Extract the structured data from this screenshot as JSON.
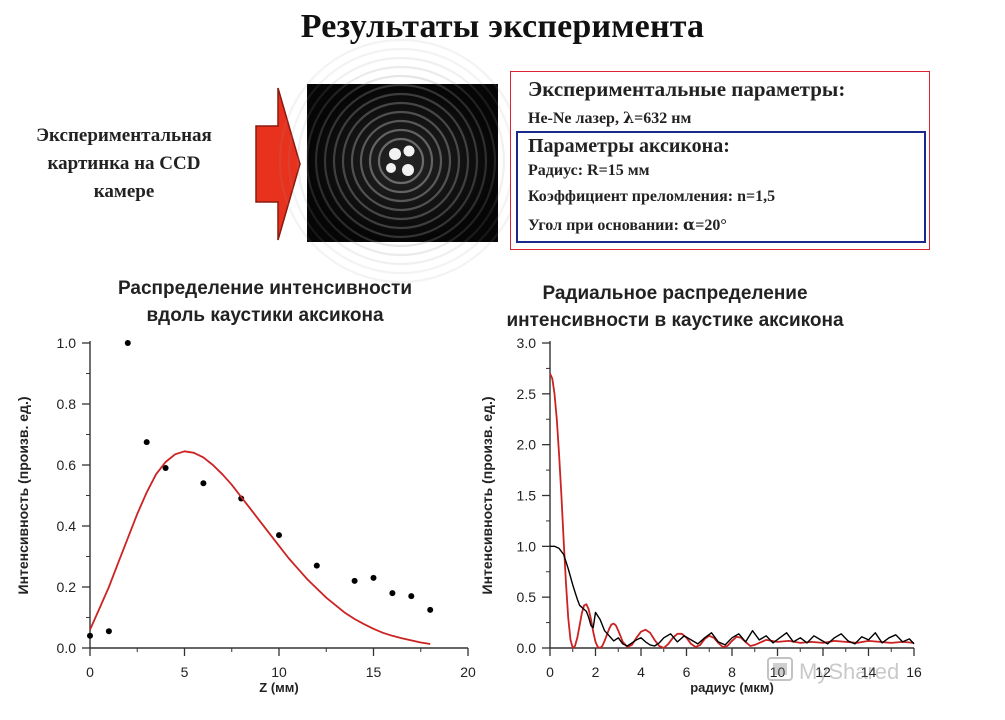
{
  "title": "Результаты эксперимента",
  "ccd_label": [
    "Экспериментальная",
    "картинка на CCD",
    "камере"
  ],
  "parameters": {
    "experimental_heading": "Экспериментальные параметры:",
    "laser_prefix": "He-Ne лазер, ",
    "laser_symbol": "λ",
    "laser_value": "=632 нм",
    "axicon_heading": "Параметры аксикона:",
    "radius": "Радиус: R=15 мм",
    "refraction": "Коэффициент преломления: n=1,5",
    "angle_prefix": "Угол при основании: ",
    "angle_symbol": "α",
    "angle_value": "=20°"
  },
  "colors": {
    "arrow": "#e8321e",
    "frame_red": "#d22233",
    "frame_blue": "#1a2a8a",
    "fit_line": "#cc2222",
    "data": "#000000"
  },
  "watermark": "MyShared",
  "chart_data": [
    {
      "type": "scatter",
      "title": "Распределение интенсивности вдоль каустики аксикона",
      "title_lines": [
        "Распределение интенсивности",
        "вдоль каустики аксикона"
      ],
      "xlabel": "Z (мм)",
      "ylabel": "Интенсивность (произв. ед.)",
      "xlim": [
        0,
        20
      ],
      "ylim": [
        0,
        1.0
      ],
      "xticks": [
        "0",
        "5",
        "10",
        "15",
        "20"
      ],
      "yticks": [
        "0.0",
        "0.2",
        "0.4",
        "0.6",
        "0.8",
        "1.0"
      ],
      "series": [
        {
          "kind": "points",
          "x": [
            0,
            1,
            2,
            3,
            4,
            6,
            8,
            10,
            12,
            14,
            15,
            16,
            17,
            18
          ],
          "y": [
            0.04,
            0.055,
            1.0,
            0.675,
            0.59,
            0.54,
            0.49,
            0.37,
            0.27,
            0.22,
            0.23,
            0.18,
            0.17,
            0.125
          ]
        },
        {
          "kind": "line",
          "x": [
            0,
            0.5,
            1,
            1.5,
            2,
            2.5,
            3,
            3.5,
            4,
            4.5,
            5,
            5.5,
            6,
            6.5,
            7,
            7.5,
            8,
            8.5,
            9,
            9.5,
            10,
            10.5,
            11,
            11.5,
            12,
            12.5,
            13,
            13.5,
            14,
            14.5,
            15,
            15.5,
            16,
            16.5,
            17,
            17.5,
            18
          ],
          "y": [
            0.06,
            0.13,
            0.2,
            0.28,
            0.36,
            0.44,
            0.51,
            0.57,
            0.61,
            0.635,
            0.645,
            0.64,
            0.625,
            0.6,
            0.57,
            0.535,
            0.495,
            0.455,
            0.415,
            0.375,
            0.335,
            0.295,
            0.26,
            0.225,
            0.195,
            0.165,
            0.14,
            0.115,
            0.095,
            0.078,
            0.063,
            0.05,
            0.04,
            0.032,
            0.025,
            0.018,
            0.013
          ]
        }
      ]
    },
    {
      "type": "line",
      "title": "Радиальное распределение интенсивности в каустике аксикона",
      "title_lines": [
        "Радиальное распределение",
        "интенсивности в каустике аксикона"
      ],
      "xlabel": "радиус (мкм)",
      "ylabel": "Интенсивность (произв. ед.)",
      "xlim": [
        0,
        16
      ],
      "ylim": [
        0,
        3.0
      ],
      "xticks": [
        "0",
        "2",
        "4",
        "6",
        "8",
        "10",
        "12",
        "14",
        "16"
      ],
      "yticks": [
        "0.0",
        "0.5",
        "1.0",
        "1.5",
        "2.0",
        "2.5",
        "3.0"
      ],
      "series": [
        {
          "kind": "line",
          "color": "red",
          "x": [
            0,
            0.1,
            0.2,
            0.3,
            0.4,
            0.5,
            0.6,
            0.7,
            0.8,
            0.9,
            1.0,
            1.1,
            1.2,
            1.3,
            1.4,
            1.5,
            1.6,
            1.7,
            1.8,
            1.9,
            2.0,
            2.1,
            2.2,
            2.3,
            2.4,
            2.5,
            2.6,
            2.7,
            2.8,
            2.9,
            3.0,
            3.2,
            3.4,
            3.6,
            3.8,
            4.0,
            4.2,
            4.4,
            4.6,
            4.8,
            5.0,
            5.2,
            5.4,
            5.6,
            5.8,
            6.0,
            6.2,
            6.4,
            6.6,
            6.8,
            7.0,
            7.2,
            7.4,
            7.6,
            7.8,
            8.0,
            8.2,
            8.4,
            8.6,
            8.8,
            9.0,
            9.5,
            10.0,
            10.5,
            11.0,
            11.5,
            12.0,
            12.5,
            13.0,
            13.5,
            14.0,
            14.5,
            15.0,
            15.5,
            16.0
          ],
          "y": [
            2.7,
            2.65,
            2.5,
            2.25,
            1.9,
            1.5,
            1.05,
            0.65,
            0.3,
            0.08,
            0.0,
            0.02,
            0.1,
            0.22,
            0.34,
            0.42,
            0.43,
            0.38,
            0.28,
            0.16,
            0.06,
            0.01,
            0.0,
            0.02,
            0.07,
            0.13,
            0.19,
            0.23,
            0.24,
            0.22,
            0.17,
            0.06,
            0.01,
            0.03,
            0.1,
            0.16,
            0.18,
            0.15,
            0.08,
            0.02,
            0.0,
            0.04,
            0.1,
            0.14,
            0.14,
            0.1,
            0.04,
            0.01,
            0.03,
            0.09,
            0.12,
            0.1,
            0.05,
            0.01,
            0.02,
            0.07,
            0.11,
            0.1,
            0.06,
            0.02,
            0.03,
            0.08,
            0.06,
            0.07,
            0.05,
            0.06,
            0.05,
            0.07,
            0.06,
            0.05,
            0.07,
            0.06,
            0.05,
            0.06,
            0.05
          ]
        },
        {
          "kind": "line",
          "color": "black",
          "x": [
            0,
            0.2,
            0.4,
            0.6,
            0.8,
            1.0,
            1.1,
            1.2,
            1.3,
            1.4,
            1.5,
            1.6,
            1.7,
            1.8,
            1.9,
            2.0,
            2.2,
            2.4,
            2.6,
            2.8,
            3.0,
            3.2,
            3.4,
            3.6,
            3.8,
            4.0,
            4.2,
            4.4,
            4.6,
            4.8,
            5.0,
            5.3,
            5.6,
            5.9,
            6.2,
            6.5,
            6.8,
            7.1,
            7.4,
            7.7,
            8.0,
            8.3,
            8.6,
            8.9,
            9.2,
            9.5,
            9.8,
            10.1,
            10.4,
            10.7,
            11.0,
            11.3,
            11.6,
            11.9,
            12.2,
            12.5,
            12.8,
            13.1,
            13.4,
            13.7,
            14.0,
            14.3,
            14.6,
            14.9,
            15.2,
            15.5,
            15.8,
            16.0
          ],
          "y": [
            1.0,
            1.0,
            0.98,
            0.92,
            0.78,
            0.62,
            0.55,
            0.48,
            0.42,
            0.4,
            0.38,
            0.36,
            0.3,
            0.22,
            0.2,
            0.35,
            0.28,
            0.17,
            0.12,
            0.07,
            0.1,
            0.04,
            0.02,
            0.05,
            0.08,
            0.1,
            0.06,
            0.03,
            0.02,
            0.05,
            0.1,
            0.14,
            0.06,
            0.12,
            0.08,
            0.04,
            0.1,
            0.15,
            0.06,
            0.03,
            0.1,
            0.14,
            0.06,
            0.17,
            0.08,
            0.12,
            0.05,
            0.1,
            0.15,
            0.06,
            0.1,
            0.05,
            0.12,
            0.08,
            0.04,
            0.1,
            0.14,
            0.07,
            0.04,
            0.11,
            0.08,
            0.15,
            0.05,
            0.1,
            0.13,
            0.06,
            0.09,
            0.04
          ]
        }
      ]
    }
  ]
}
